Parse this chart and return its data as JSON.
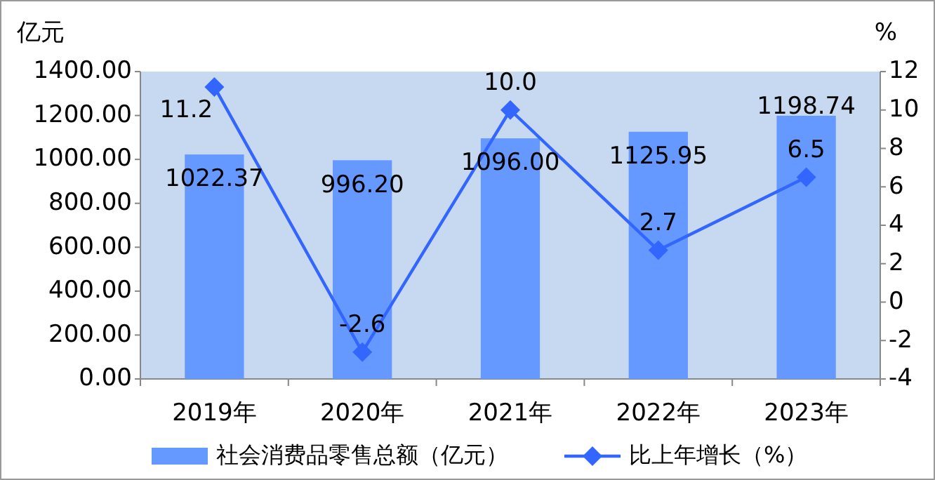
{
  "chart_data": {
    "type": "bar",
    "categories": [
      "2019年",
      "2020年",
      "2021年",
      "2022年",
      "2023年"
    ],
    "ylabel": "亿元",
    "y2label": "%",
    "series": [
      {
        "name": "社会消费品零售总额（亿元）",
        "color": "#6699ff",
        "values": [
          1022.37,
          996.2,
          1096.0,
          1125.95,
          1198.74
        ],
        "value_labels": [
          "1022.37",
          "996.20",
          "1096.00",
          "1125.95",
          "1198.74"
        ]
      },
      {
        "name": "比上年增长（%）",
        "type": "line",
        "axis": "y2",
        "color": "#3366ff",
        "marker": "diamond",
        "values": [
          11.2,
          -2.6,
          10.0,
          2.7,
          6.5
        ],
        "value_labels": [
          "11.2",
          "-2.6",
          "10.0",
          "2.7",
          "6.5"
        ]
      }
    ],
    "ylim": [
      0,
      1400
    ],
    "yticks": [
      {
        "value": 0,
        "label": "0.00"
      },
      {
        "value": 200,
        "label": "200.00"
      },
      {
        "value": 400,
        "label": "400.00"
      },
      {
        "value": 600,
        "label": "600.00"
      },
      {
        "value": 800,
        "label": "800.00"
      },
      {
        "value": 1000,
        "label": "1000.00"
      },
      {
        "value": 1200,
        "label": "1200.00"
      },
      {
        "value": 1400,
        "label": "1400.00"
      }
    ],
    "y2lim": [
      -4,
      12
    ],
    "y2ticks": [
      -4,
      -2,
      0,
      2,
      4,
      6,
      8,
      10,
      12
    ],
    "grid": false,
    "legend": "bottom"
  }
}
